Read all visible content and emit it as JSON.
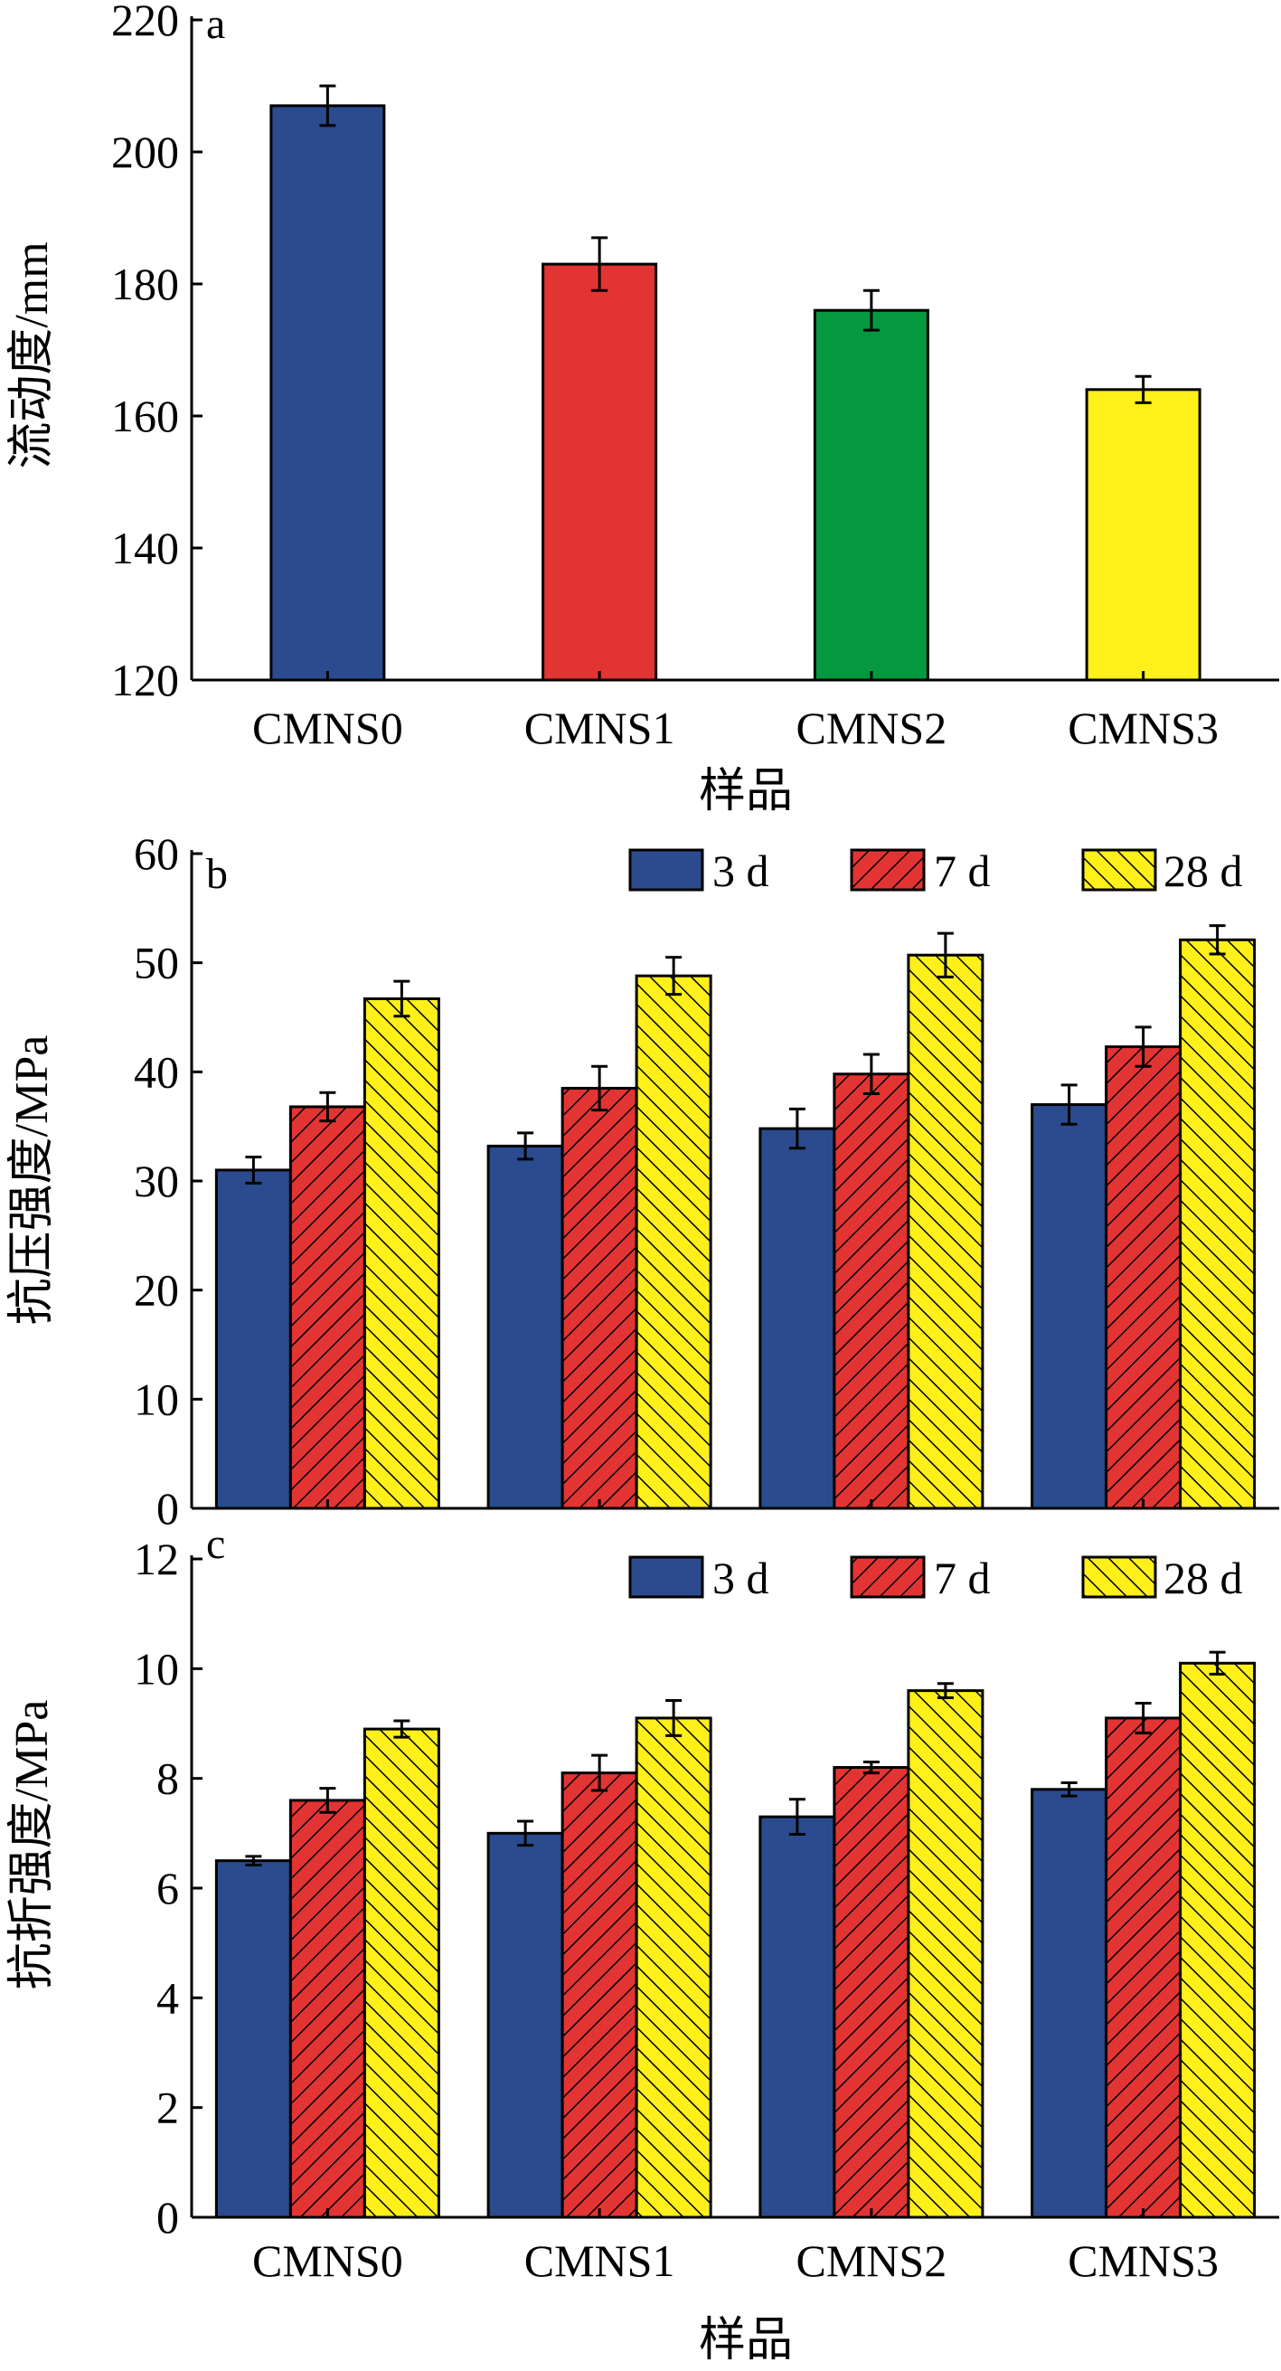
{
  "chart_data": [
    {
      "panel": "a",
      "type": "bar",
      "categories": [
        "CMNS0",
        "CMNS1",
        "CMNS2",
        "CMNS3"
      ],
      "values": [
        207,
        183,
        176,
        164
      ],
      "errors": [
        3,
        4,
        3,
        2
      ],
      "colors": [
        "#2b4b8e",
        "#e33434",
        "#05993f",
        "#fff01a"
      ],
      "xlabel": "样品",
      "ylabel": "流动度/mm",
      "ylim": [
        120,
        220
      ],
      "yticks": [
        120,
        140,
        160,
        180,
        200,
        220
      ]
    },
    {
      "panel": "b",
      "type": "bar",
      "categories": [
        "CMNS0",
        "CMNS1",
        "CMNS2",
        "CMNS3"
      ],
      "series": [
        {
          "name": "3 d",
          "values": [
            31.0,
            33.2,
            34.8,
            37.0
          ],
          "errors": [
            1.2,
            1.2,
            1.8,
            1.8
          ],
          "color": "#2b4b8e",
          "pattern": "none"
        },
        {
          "name": "7 d",
          "values": [
            36.8,
            38.5,
            39.8,
            42.3
          ],
          "errors": [
            1.3,
            2.0,
            1.8,
            1.8
          ],
          "color": "#e33434",
          "pattern": "hatch-up"
        },
        {
          "name": "28 d",
          "values": [
            46.7,
            48.8,
            50.7,
            52.1
          ],
          "errors": [
            1.6,
            1.7,
            2.0,
            1.3
          ],
          "color": "#fff01a",
          "pattern": "hatch-down"
        }
      ],
      "xlabel": "",
      "ylabel": "抗压强度/MPa",
      "ylim": [
        0,
        60
      ],
      "yticks": [
        0,
        10,
        20,
        30,
        40,
        50,
        60
      ],
      "legend": "top-right"
    },
    {
      "panel": "c",
      "type": "bar",
      "categories": [
        "CMNS0",
        "CMNS1",
        "CMNS2",
        "CMNS3"
      ],
      "series": [
        {
          "name": "3 d",
          "values": [
            6.5,
            7.0,
            7.3,
            7.8
          ],
          "errors": [
            0.08,
            0.22,
            0.32,
            0.12
          ],
          "color": "#2b4b8e",
          "pattern": "none"
        },
        {
          "name": "7 d",
          "values": [
            7.6,
            8.1,
            8.2,
            9.1
          ],
          "errors": [
            0.22,
            0.32,
            0.1,
            0.27
          ],
          "color": "#e33434",
          "pattern": "hatch-up"
        },
        {
          "name": "28 d",
          "values": [
            8.9,
            9.1,
            9.6,
            10.1
          ],
          "errors": [
            0.15,
            0.32,
            0.13,
            0.2
          ],
          "color": "#fff01a",
          "pattern": "hatch-down"
        }
      ],
      "xlabel": "样品",
      "ylabel": "抗折强度/MPa",
      "ylim": [
        0,
        12
      ],
      "yticks": [
        0,
        2,
        4,
        6,
        8,
        10,
        12
      ],
      "legend": "top-right"
    }
  ]
}
